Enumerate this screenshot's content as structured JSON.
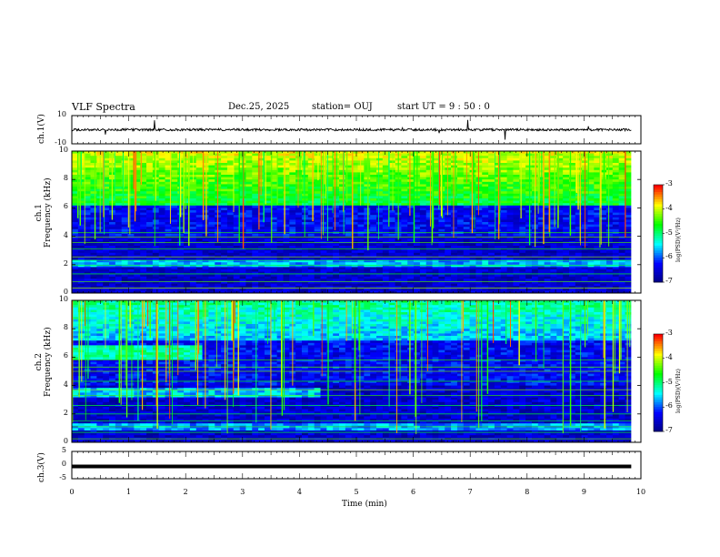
{
  "header": {
    "title": "VLF Spectra",
    "date": "Dec.25, 2025",
    "station": "station= OUJ",
    "start": "start  UT =   9 : 50 : 0"
  },
  "chart_data": [
    {
      "type": "line",
      "name": "ch1-waveform",
      "ylabel": "ch.1(V)",
      "ylim": [
        -10,
        10
      ],
      "yticks": [
        "10",
        "-10"
      ],
      "xlim": [
        0,
        10
      ],
      "baseline": 0,
      "series": [
        {
          "name": "ch.1",
          "values_description_free": true
        }
      ]
    },
    {
      "type": "heatmap",
      "name": "ch1-spectrogram",
      "ylabel": "ch.1\nFrequency (kHz)",
      "ylim": [
        0,
        10
      ],
      "yticks": [
        "0",
        "2",
        "4",
        "6",
        "8",
        "10"
      ],
      "xlim": [
        0,
        10
      ],
      "colorbar": {
        "label": "log(PSD)(V²/Hz)",
        "range": [
          -7,
          -3
        ],
        "ticks": [
          "-3",
          "-4",
          "-5",
          "-6",
          "-7"
        ]
      }
    },
    {
      "type": "heatmap",
      "name": "ch2-spectrogram",
      "ylabel": "ch.2\nFrequency (kHz)",
      "ylim": [
        0,
        10
      ],
      "yticks": [
        "0",
        "2",
        "4",
        "6",
        "8",
        "10"
      ],
      "xlim": [
        0,
        10
      ],
      "colorbar": {
        "label": "log(PSD)(V²/Hz)",
        "range": [
          -7,
          -3
        ],
        "ticks": [
          "-3",
          "-4",
          "-5",
          "-6",
          "-7"
        ]
      }
    },
    {
      "type": "line",
      "name": "ch3-waveform",
      "ylabel": "ch.3(V)",
      "ylim": [
        -5,
        5
      ],
      "yticks": [
        "5",
        "0",
        "-5"
      ],
      "xlim": [
        0,
        10
      ],
      "baseline": -0.5
    }
  ],
  "xaxis": {
    "label": "Time (min)",
    "ticks": [
      "0",
      "1",
      "2",
      "3",
      "4",
      "5",
      "6",
      "7",
      "8",
      "9",
      "10"
    ],
    "data_end": 9.83
  },
  "colors": {
    "cmap": [
      "#000080",
      "#0000ff",
      "#00ffff",
      "#00ff00",
      "#ffff00",
      "#ff0000"
    ]
  }
}
